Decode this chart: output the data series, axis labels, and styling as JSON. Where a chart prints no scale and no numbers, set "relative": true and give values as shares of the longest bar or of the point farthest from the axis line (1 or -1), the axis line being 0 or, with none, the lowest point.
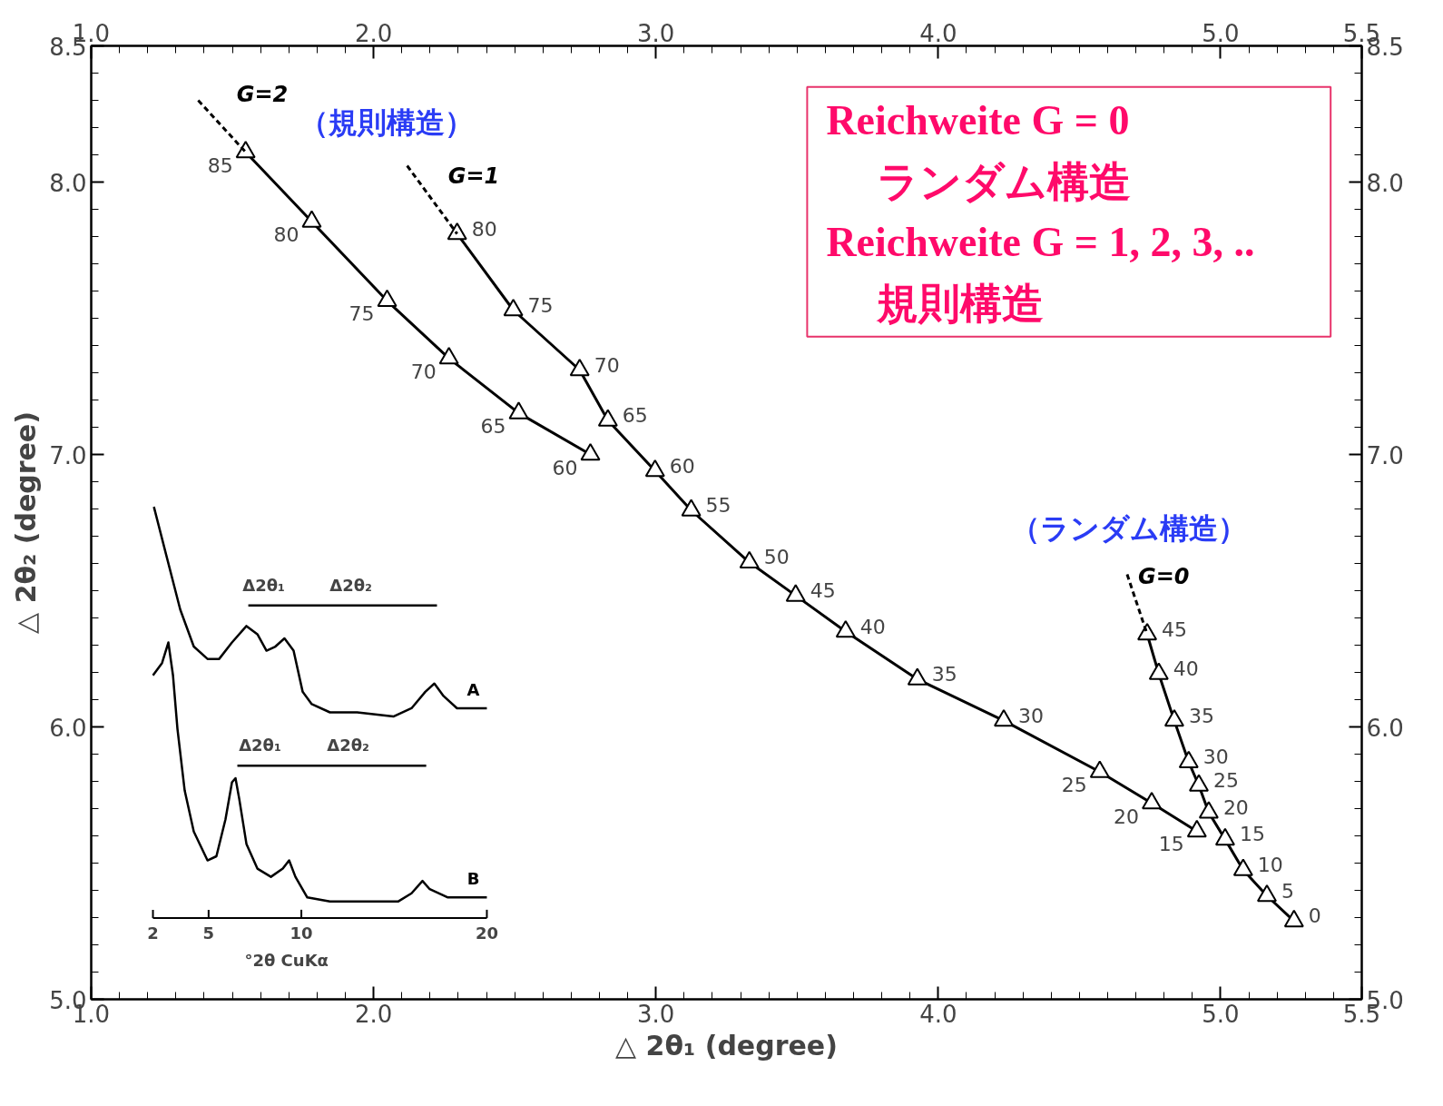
{
  "chart_data": [
    {
      "type": "line",
      "xlabel": "△ 2θ₁ (degree)",
      "ylabel": "△ 2θ₂ (degree)",
      "xlim": [
        1.0,
        5.5
      ],
      "xticks": [
        {
          "value": 1,
          "label": "1.0"
        },
        {
          "value": 2,
          "label": "2.0"
        },
        {
          "value": 3,
          "label": "3.0"
        },
        {
          "value": 4,
          "label": "4.0"
        },
        {
          "value": 5,
          "label": "5.0"
        },
        5.5
      ],
      "x2lim": [
        1.0,
        5.5
      ],
      "x2ticks": [
        {
          "value": 1,
          "label": "1.0"
        },
        {
          "value": 2,
          "label": "2.0"
        },
        {
          "value": 3,
          "label": "3.0"
        },
        {
          "value": 4,
          "label": "4.0"
        },
        {
          "value": 5,
          "label": "5.0"
        },
        5.5
      ],
      "ylim": [
        5.0,
        8.5
      ],
      "yticks": [
        {
          "value": 5,
          "label": "5.0"
        },
        {
          "value": 6,
          "label": "6.0"
        },
        {
          "value": 7,
          "label": "7.0"
        },
        {
          "value": 8,
          "label": "8.0"
        },
        8.5
      ],
      "y2lim": [
        5.0,
        8.5
      ],
      "y2ticks": [
        {
          "value": 5,
          "label": "5.0"
        },
        {
          "value": 6,
          "label": "6.0"
        },
        {
          "value": 7,
          "label": "7.0"
        },
        {
          "value": 8,
          "label": "8.0"
        },
        8.5
      ],
      "marker": "triangle",
      "line_style": "solid",
      "grid": false,
      "series": [
        {
          "name": "G=2",
          "color": "#000000",
          "x": [
            1.547,
            1.781,
            2.048,
            2.267,
            2.514,
            2.768
          ],
          "values": [
            8.11,
            7.855,
            7.564,
            7.353,
            7.152,
            7.0
          ]
        },
        {
          "name": "G=1",
          "color": "#000000",
          "x": [
            2.296,
            2.495,
            2.73,
            2.83,
            2.997,
            3.125,
            3.331,
            3.495,
            3.672,
            3.926,
            4.232,
            4.572,
            4.756,
            4.916
          ],
          "values": [
            7.81,
            7.53,
            7.31,
            7.125,
            6.94,
            6.795,
            6.604,
            6.482,
            6.35,
            6.175,
            6.023,
            5.835,
            5.72,
            5.617
          ]
        },
        {
          "name": "G=0",
          "color": "#000000",
          "x": [
            4.74,
            4.781,
            4.836,
            4.887,
            4.923,
            4.958,
            5.016,
            5.08,
            5.164,
            5.26
          ],
          "values": [
            6.34,
            6.195,
            6.023,
            5.871,
            5.785,
            5.686,
            5.587,
            5.475,
            5.38,
            5.287
          ]
        },
        {
          "color": "#000000",
          "x": [
            1.379,
            1.547
          ],
          "values": [
            8.3,
            8.11
          ],
          "marker": "none",
          "line_style": "dashed"
        },
        {
          "color": "#000000",
          "x": [
            2.119,
            2.296
          ],
          "values": [
            8.06,
            7.81
          ],
          "marker": "none",
          "line_style": "dashed"
        },
        {
          "color": "#000000",
          "x": [
            4.669,
            4.74
          ],
          "values": [
            6.56,
            6.34
          ],
          "marker": "none",
          "line_style": "dashed"
        }
      ],
      "annotations": [
        "（規則構造）",
        "（ランダム構造）",
        "Reichweite G = 0",
        "ランダム構造",
        "Reichweite G = 1, 2, 3, ..",
        "規則構造",
        {
          "text": "85",
          "x": 1.547,
          "y": 8.11
        },
        {
          "text": "80",
          "x": 1.781,
          "y": 7.855
        },
        {
          "text": "75",
          "x": 2.048,
          "y": 7.564
        },
        {
          "text": "70",
          "x": 2.267,
          "y": 7.353
        },
        {
          "text": "65",
          "x": 2.514,
          "y": 7.152
        },
        {
          "text": "60",
          "x": 2.768,
          "y": 7.0
        },
        {
          "text": "80",
          "x": 2.296,
          "y": 7.81
        },
        {
          "text": "75",
          "x": 2.495,
          "y": 7.53
        },
        {
          "text": "70",
          "x": 2.73,
          "y": 7.31
        },
        {
          "text": "65",
          "x": 2.83,
          "y": 7.125
        },
        {
          "text": "60",
          "x": 2.997,
          "y": 6.94
        },
        {
          "text": "55",
          "x": 3.125,
          "y": 6.795
        },
        {
          "text": "50",
          "x": 3.331,
          "y": 6.604
        },
        {
          "text": "45",
          "x": 3.495,
          "y": 6.482
        },
        {
          "text": "40",
          "x": 3.672,
          "y": 6.35
        },
        {
          "text": "35",
          "x": 3.926,
          "y": 6.175
        },
        {
          "text": "30",
          "x": 4.232,
          "y": 6.023
        },
        {
          "text": "25",
          "x": 4.572,
          "y": 5.835
        },
        {
          "text": "20",
          "x": 4.756,
          "y": 5.72
        },
        {
          "text": "15",
          "x": 4.916,
          "y": 5.617
        },
        {
          "text": "45",
          "x": 4.74,
          "y": 6.34
        },
        {
          "text": "40",
          "x": 4.781,
          "y": 6.195
        },
        {
          "text": "35",
          "x": 4.836,
          "y": 6.023
        },
        {
          "text": "30",
          "x": 4.887,
          "y": 5.871
        },
        {
          "text": "25",
          "x": 4.923,
          "y": 5.785
        },
        {
          "text": "20",
          "x": 4.958,
          "y": 5.686
        },
        {
          "text": "15",
          "x": 5.016,
          "y": 5.587
        },
        {
          "text": "10",
          "x": 5.08,
          "y": 5.475
        },
        {
          "text": "5",
          "x": 5.164,
          "y": 5.38
        },
        {
          "text": "0",
          "x": 5.26,
          "y": 5.287
        }
      ]
    },
    {
      "type": "line",
      "relative": true,
      "xlabel": "°2θ CuKα",
      "xlim": [
        2,
        20
      ],
      "xticks": [
        2,
        5,
        10,
        20
      ],
      "tick_labels": "x",
      "marker": "none",
      "series": [
        {
          "name": "A",
          "color": "#000000",
          "x": [
            2.05,
            2.73,
            3.47,
            4.2,
            4.94,
            5.57,
            6.26,
            7.04,
            7.63,
            8.12,
            8.6,
            9.09,
            9.58,
            10.07,
            10.56,
            11.54,
            13.01,
            14.96,
            15.94,
            16.68,
            17.17,
            17.66,
            18.39,
            20.0
          ],
          "values": [
            1.0,
            0.88,
            0.75,
            0.66,
            0.63,
            0.63,
            0.67,
            0.71,
            0.69,
            0.65,
            0.66,
            0.68,
            0.65,
            0.55,
            0.52,
            0.5,
            0.5,
            0.49,
            0.51,
            0.55,
            0.57,
            0.54,
            0.51,
            0.51
          ]
        },
        {
          "name": "B",
          "color": "#000000",
          "x": [
            2.0,
            2.49,
            2.83,
            3.08,
            3.32,
            3.71,
            4.2,
            4.94,
            5.42,
            5.91,
            6.26,
            6.45,
            6.65,
            7.04,
            7.63,
            8.36,
            9.0,
            9.34,
            9.68,
            10.32,
            11.54,
            13.99,
            15.21,
            15.94,
            16.53,
            16.92,
            17.9,
            20.0
          ],
          "values": [
            0.59,
            0.62,
            0.67,
            0.59,
            0.46,
            0.31,
            0.21,
            0.14,
            0.15,
            0.24,
            0.33,
            0.34,
            0.29,
            0.18,
            0.12,
            0.1,
            0.12,
            0.14,
            0.1,
            0.05,
            0.04,
            0.04,
            0.04,
            0.06,
            0.09,
            0.07,
            0.05,
            0.05
          ]
        },
        {
          "color": "#000000",
          "x": [
            7.14,
            9.24,
            17.31
          ],
          "values": [
            0.76,
            0.76,
            0.76
          ]
        },
        {
          "color": "#000000",
          "x": [
            6.55,
            9.53,
            16.73
          ],
          "values": [
            0.37,
            0.37,
            0.37
          ]
        }
      ],
      "annotations": [
        "Δ2θ₁",
        "Δ2θ₂",
        "Δ2θ₁",
        "Δ2θ₂"
      ]
    }
  ]
}
